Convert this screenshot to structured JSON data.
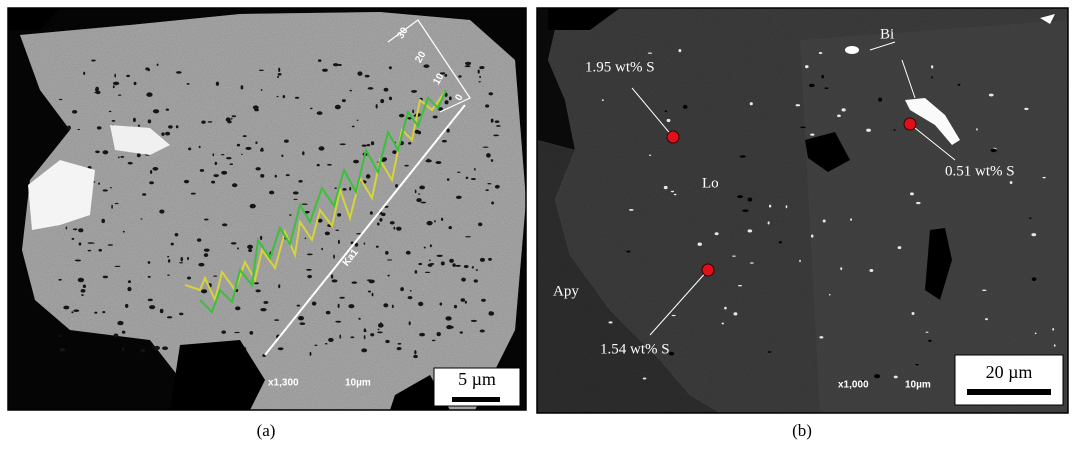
{
  "panel_a": {
    "profile_ticks": [
      "30",
      "20",
      "10",
      "0"
    ],
    "line_label": "Ka1",
    "magnification": "x1,300",
    "micron_marker": "10µm",
    "scale_bar": "5 µm",
    "caption": "(a)"
  },
  "panel_b": {
    "labels": {
      "bi": "Bi",
      "lo": "Lo",
      "apy": "Apy"
    },
    "points": [
      "1.95 wt% S",
      "0.51 wt% S",
      "1.54 wt% S"
    ],
    "magnification": "x1,000",
    "micron_marker": "10µm",
    "scale_bar": "20 µm",
    "caption": "(b)"
  }
}
